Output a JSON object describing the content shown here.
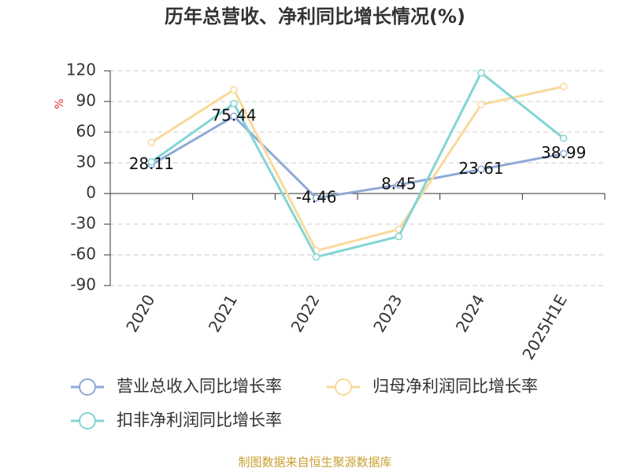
{
  "chart_data": {
    "type": "line",
    "title": "历年总营收、净利同比增长情况(%)",
    "y_axis_label": "%",
    "categories": [
      "2020",
      "2021",
      "2022",
      "2023",
      "2024",
      "2025H1E"
    ],
    "series": [
      {
        "name": "营业总收入同比增长率",
        "color": "#8eaad6",
        "values": [
          28.11,
          75.44,
          -4.46,
          8.45,
          23.61,
          38.99
        ],
        "data_labels": true
      },
      {
        "name": "归母净利润同比增长率",
        "color": "#f9d99a",
        "values": [
          50,
          101.5,
          -56,
          -35,
          87,
          104.6
        ]
      },
      {
        "name": "扣非净利润同比增长率",
        "color": "#84d4d4",
        "values": [
          31,
          88,
          -62,
          -42,
          118,
          54
        ]
      }
    ],
    "ylim": [
      -90,
      120
    ],
    "yticks": [
      -90,
      -60,
      -30,
      0,
      30,
      60,
      90,
      120
    ],
    "grid": true,
    "source": "制图数据来自恒生聚源数据库"
  }
}
